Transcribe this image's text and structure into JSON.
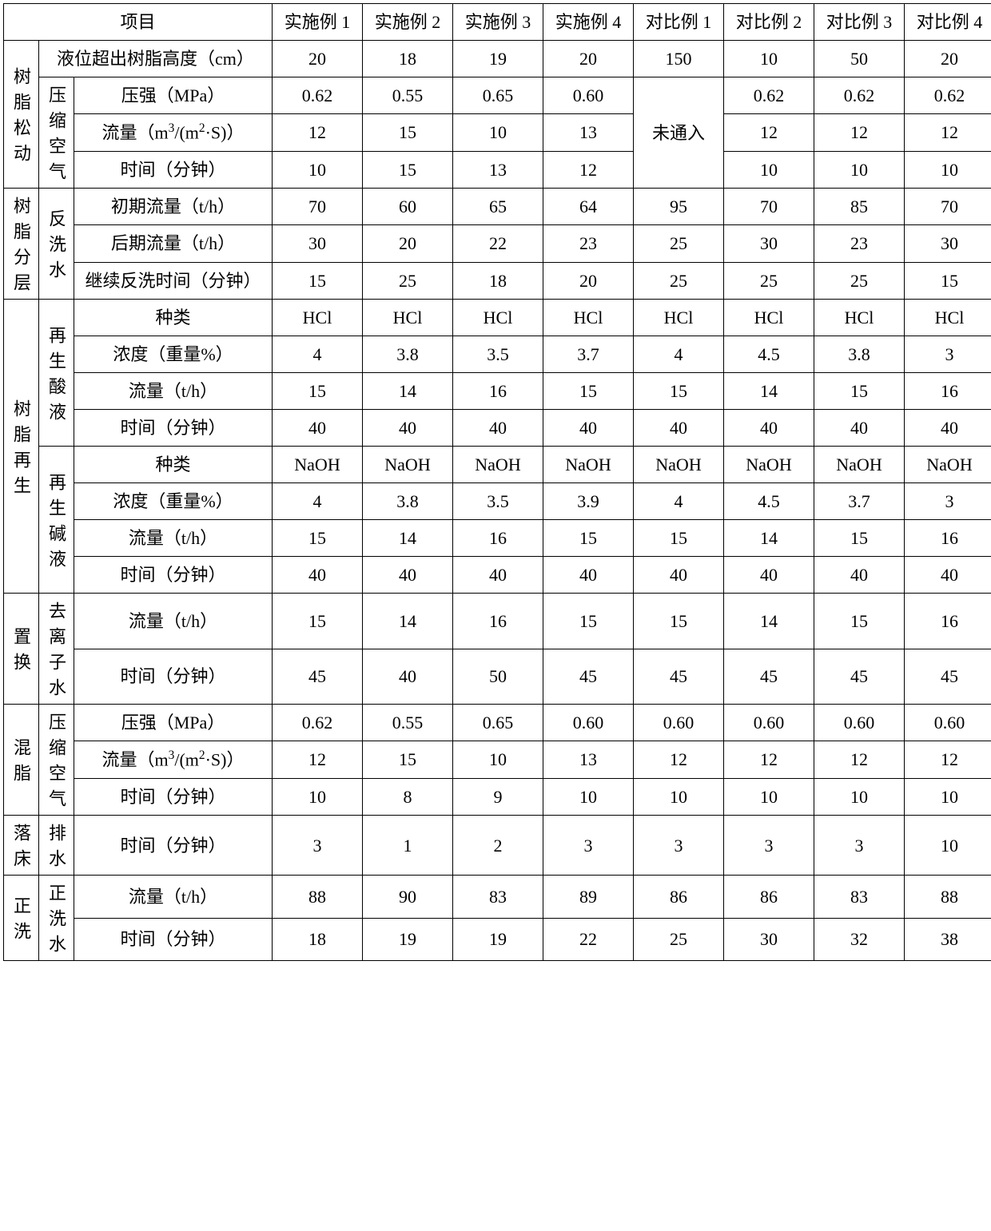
{
  "header": {
    "project": "项目",
    "cols": [
      "实施例 1",
      "实施例 2",
      "实施例 3",
      "实施例 4",
      "对比例 1",
      "对比例 2",
      "对比例 3",
      "对比例 4"
    ]
  },
  "sections": {
    "s1": {
      "title": "树脂松动",
      "row_liquid": {
        "label": "液位超出树脂高度（cm）",
        "v": [
          "20",
          "18",
          "19",
          "20",
          "150",
          "10",
          "50",
          "20"
        ]
      },
      "sub_air": "压缩空气",
      "row_pressure": {
        "label": "压强（MPa）",
        "v": [
          "0.62",
          "0.55",
          "0.65",
          "0.60",
          "",
          "0.62",
          "0.62",
          "0.62"
        ]
      },
      "row_flow": {
        "label_pre": "流量（m",
        "label_sup": "3",
        "label_mid": "/(m",
        "label_sup2": "2",
        "label_post": "·S)）",
        "v": [
          "12",
          "15",
          "10",
          "13",
          "",
          "12",
          "12",
          "12"
        ]
      },
      "row_time": {
        "label": "时间（分钟）",
        "v": [
          "10",
          "15",
          "13",
          "12",
          "",
          "10",
          "10",
          "10"
        ]
      },
      "merged_note": "未通入"
    },
    "s2": {
      "title": "树脂分层",
      "sub": "反洗水",
      "r1": {
        "label": "初期流量（t/h）",
        "v": [
          "70",
          "60",
          "65",
          "64",
          "95",
          "70",
          "85",
          "70"
        ]
      },
      "r2": {
        "label": "后期流量（t/h）",
        "v": [
          "30",
          "20",
          "22",
          "23",
          "25",
          "30",
          "23",
          "30"
        ]
      },
      "r3": {
        "label": "继续反洗时间（分钟）",
        "v": [
          "15",
          "25",
          "18",
          "20",
          "25",
          "25",
          "25",
          "15"
        ]
      }
    },
    "s3": {
      "title": "树脂再生",
      "subA": "再生酸液",
      "a1": {
        "label": "种类",
        "v": [
          "HCl",
          "HCl",
          "HCl",
          "HCl",
          "HCl",
          "HCl",
          "HCl",
          "HCl"
        ]
      },
      "a2": {
        "label": "浓度（重量%）",
        "v": [
          "4",
          "3.8",
          "3.5",
          "3.7",
          "4",
          "4.5",
          "3.8",
          "3"
        ]
      },
      "a3": {
        "label": "流量（t/h）",
        "v": [
          "15",
          "14",
          "16",
          "15",
          "15",
          "14",
          "15",
          "16"
        ]
      },
      "a4": {
        "label": "时间（分钟）",
        "v": [
          "40",
          "40",
          "40",
          "40",
          "40",
          "40",
          "40",
          "40"
        ]
      },
      "subB": "再生碱液",
      "b1": {
        "label": "种类",
        "v": [
          "NaOH",
          "NaOH",
          "NaOH",
          "NaOH",
          "NaOH",
          "NaOH",
          "NaOH",
          "NaOH"
        ]
      },
      "b2": {
        "label": "浓度（重量%）",
        "v": [
          "4",
          "3.8",
          "3.5",
          "3.9",
          "4",
          "4.5",
          "3.7",
          "3"
        ]
      },
      "b3": {
        "label": "流量（t/h）",
        "v": [
          "15",
          "14",
          "16",
          "15",
          "15",
          "14",
          "15",
          "16"
        ]
      },
      "b4": {
        "label": "时间（分钟）",
        "v": [
          "40",
          "40",
          "40",
          "40",
          "40",
          "40",
          "40",
          "40"
        ]
      }
    },
    "s4": {
      "title": "置换",
      "sub": "去离子水",
      "r1": {
        "label": "流量（t/h）",
        "v": [
          "15",
          "14",
          "16",
          "15",
          "15",
          "14",
          "15",
          "16"
        ]
      },
      "r2": {
        "label": "时间（分钟）",
        "v": [
          "45",
          "40",
          "50",
          "45",
          "45",
          "45",
          "45",
          "45"
        ]
      }
    },
    "s5": {
      "title": "混脂",
      "sub": "压缩空气",
      "r1": {
        "label": "压强（MPa）",
        "v": [
          "0.62",
          "0.55",
          "0.65",
          "0.60",
          "0.60",
          "0.60",
          "0.60",
          "0.60"
        ]
      },
      "r2": {
        "label_pre": "流量（m",
        "label_sup": "3",
        "label_mid": "/(m",
        "label_sup2": "2",
        "label_post": "·S)）",
        "v": [
          "12",
          "15",
          "10",
          "13",
          "12",
          "12",
          "12",
          "12"
        ]
      },
      "r3": {
        "label": "时间（分钟）",
        "v": [
          "10",
          "8",
          "9",
          "10",
          "10",
          "10",
          "10",
          "10"
        ]
      }
    },
    "s6": {
      "title": "落床",
      "sub": "排水",
      "r1": {
        "label": "时间（分钟）",
        "v": [
          "3",
          "1",
          "2",
          "3",
          "3",
          "3",
          "3",
          "10"
        ]
      }
    },
    "s7": {
      "title": "正洗",
      "sub": "正洗水",
      "r1": {
        "label": "流量（t/h）",
        "v": [
          "88",
          "90",
          "83",
          "89",
          "86",
          "86",
          "83",
          "88"
        ]
      },
      "r2": {
        "label": "时间（分钟）",
        "v": [
          "18",
          "19",
          "19",
          "22",
          "25",
          "30",
          "32",
          "38"
        ]
      }
    }
  }
}
